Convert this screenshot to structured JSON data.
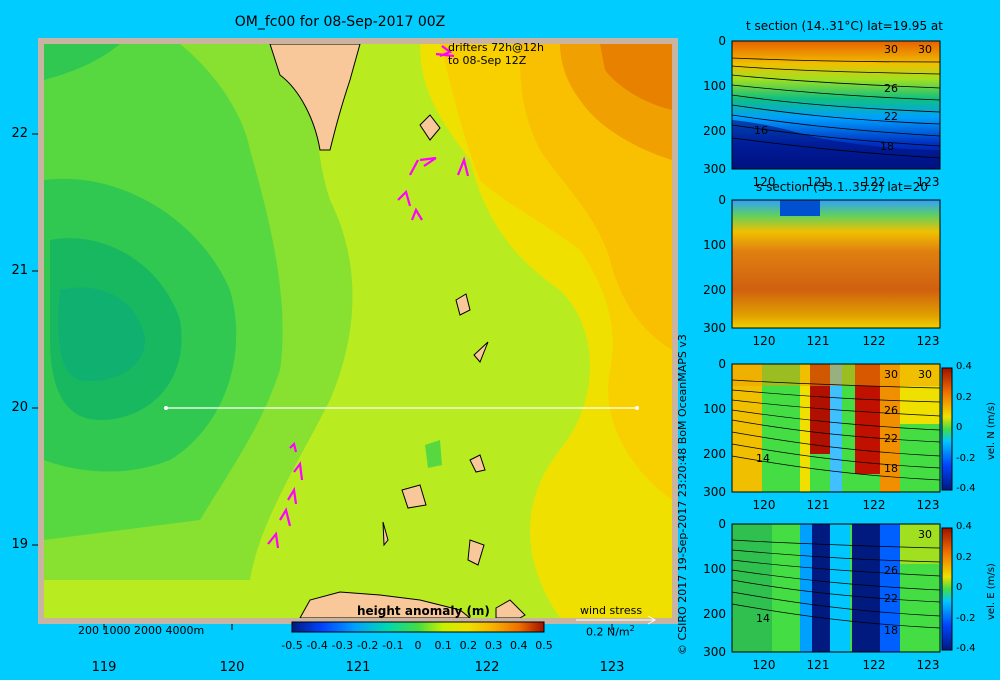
{
  "title": "OM_fc00 for 08-Sep-2017 00Z",
  "credit": "© CSIRO 2017   19-Sep-2017 23:20:48 BoM OceanMAPS v3",
  "colors": {
    "background": "#00ccff",
    "land": "#f8c89a",
    "shelf": "#c8b4a0",
    "drifter": "#ff00ff"
  },
  "chart_data": [
    {
      "type": "heatmap",
      "name": "main-map",
      "x_ticks": [
        "119",
        "120",
        "121",
        "122",
        "123"
      ],
      "y_ticks": [
        "22",
        "21",
        "20",
        "19"
      ],
      "xlim": [
        118.5,
        123.5
      ],
      "ylim": [
        18.2,
        22.7
      ],
      "drifter_note": [
        "drifters 72h@12h",
        "to 08-Sep 12Z"
      ],
      "depth_legend": "200  1000  2000  4000m",
      "colorbar": {
        "label": "height anomaly (m)",
        "ticks": [
          "-0.5",
          "-0.4",
          "-0.3",
          "-0.2",
          "-0.1",
          "0",
          "0.1",
          "0.2",
          "0.3",
          "0.4",
          "0.5"
        ],
        "range": [
          -0.5,
          0.5
        ]
      },
      "wind_stress": {
        "label": "wind stress",
        "value": "0.2 N/m",
        "superscript": "2"
      },
      "section_line": {
        "lat": 20,
        "lon_start": 119.5,
        "lon_end": 123.2
      }
    },
    {
      "type": "heatmap",
      "name": "t-section",
      "title": "t section (14..31°C) lat=19.95 at",
      "x_ticks": [
        "120",
        "121",
        "122",
        "123"
      ],
      "y_ticks": [
        "0",
        "100",
        "200",
        "300"
      ],
      "contour_labels": [
        "30",
        "30",
        "26",
        "22",
        "18",
        "16"
      ]
    },
    {
      "type": "heatmap",
      "name": "s-section",
      "title": "s section (33.1..35.2) lat=20",
      "x_ticks": [
        "120",
        "121",
        "122",
        "123"
      ],
      "y_ticks": [
        "0",
        "100",
        "200",
        "300"
      ]
    },
    {
      "type": "heatmap",
      "name": "vel-n-section",
      "x_ticks": [
        "120",
        "121",
        "122",
        "123"
      ],
      "y_ticks": [
        "0",
        "100",
        "200",
        "300"
      ],
      "contour_labels": [
        "30",
        "30",
        "26",
        "22",
        "18",
        "14"
      ],
      "colorbar": {
        "label": "vel. N (m/s)",
        "ticks": [
          "0.4",
          "0.2",
          "0",
          "-0.2",
          "-0.4"
        ]
      }
    },
    {
      "type": "heatmap",
      "name": "vel-e-section",
      "x_ticks": [
        "120",
        "121",
        "122",
        "123"
      ],
      "y_ticks": [
        "0",
        "100",
        "200",
        "300"
      ],
      "contour_labels": [
        "30",
        "26",
        "22",
        "18",
        "14"
      ],
      "colorbar": {
        "label": "vel. E (m/s)",
        "ticks": [
          "0.4",
          "0.2",
          "0",
          "-0.2",
          "-0.4"
        ]
      }
    }
  ]
}
